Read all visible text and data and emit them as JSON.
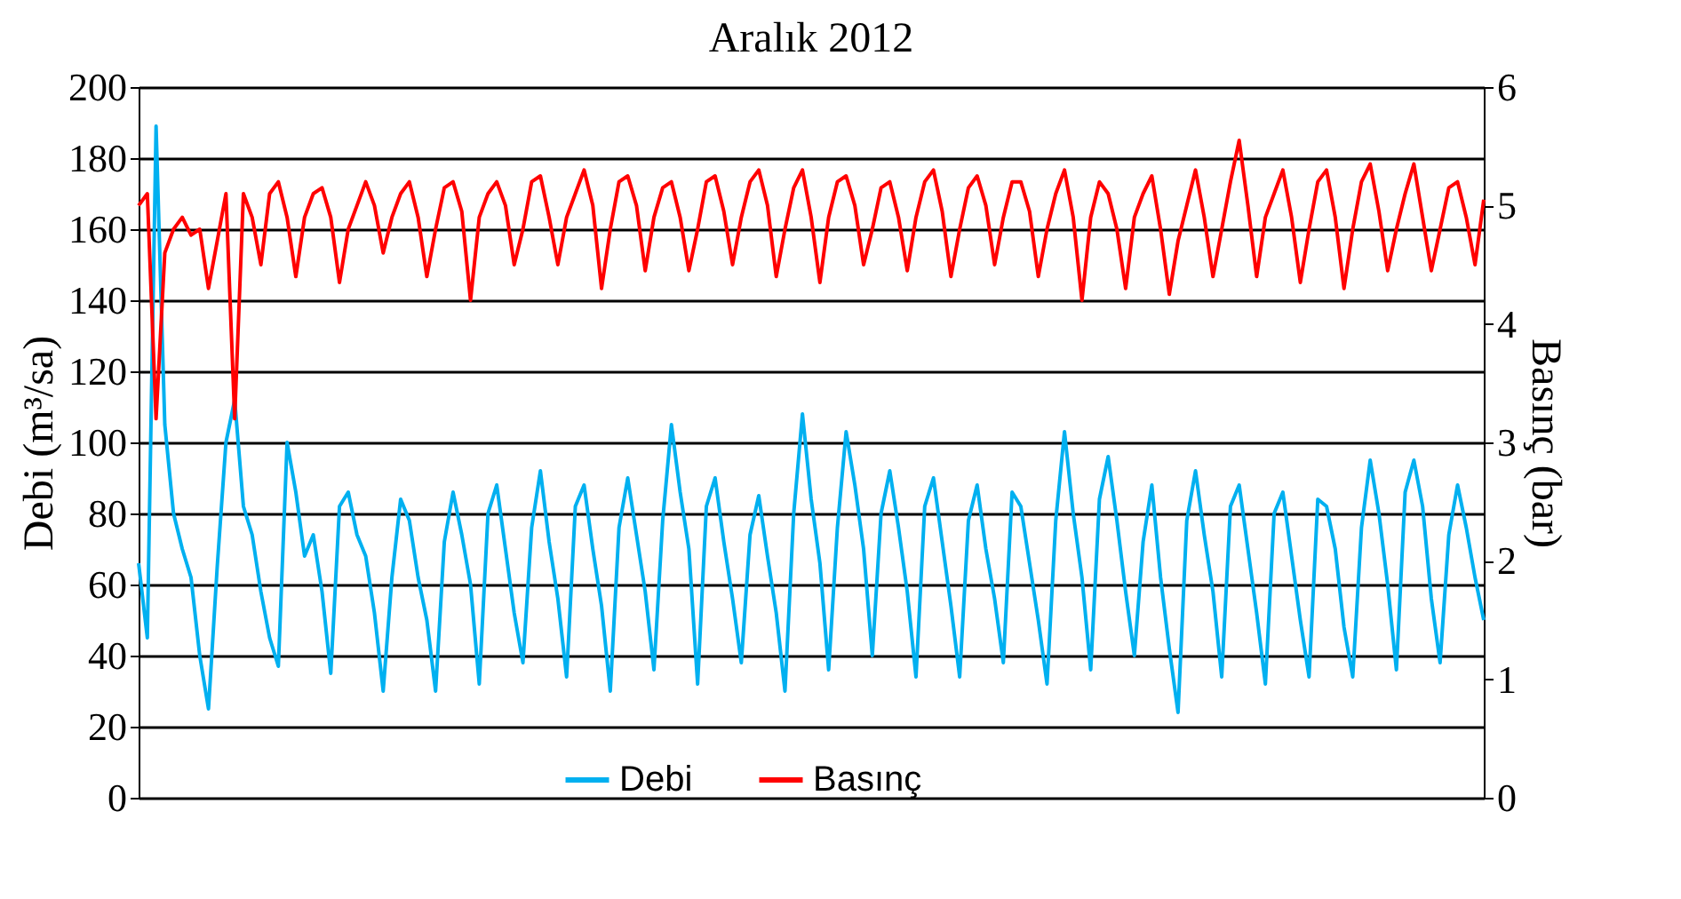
{
  "chart_data": {
    "type": "line",
    "title": "Aralık 2012",
    "ylabel": "Debi (m³/sa)",
    "y2label": "Basınç (bar)",
    "categories": [
      null,
      null,
      null,
      null,
      null,
      null,
      null,
      null,
      null,
      null,
      null,
      null,
      null,
      null,
      null,
      null,
      null,
      null,
      null,
      null,
      null,
      null,
      null,
      null,
      null,
      null,
      null,
      null,
      null,
      null,
      null,
      null,
      null,
      null,
      null,
      null,
      null,
      null,
      null,
      null,
      null,
      null,
      null,
      null,
      null,
      null,
      null,
      null,
      null,
      null,
      null,
      null,
      null,
      null,
      null,
      null,
      null,
      null,
      null,
      null,
      null,
      null,
      null,
      null,
      null,
      null,
      null,
      null,
      null,
      null,
      null,
      null,
      null,
      null,
      null,
      null,
      null,
      null,
      null,
      null,
      null,
      null,
      null,
      null,
      null,
      null,
      null,
      null,
      null,
      null,
      null,
      null,
      null,
      null,
      null,
      null,
      null,
      null,
      null,
      null,
      null,
      null,
      null,
      null,
      null,
      null,
      null,
      null,
      null,
      null,
      null,
      null,
      null,
      null,
      null,
      null,
      null,
      null,
      null,
      null,
      null,
      null,
      null,
      null,
      null,
      null,
      null,
      null,
      null,
      null,
      null,
      null,
      null,
      null,
      null,
      null,
      null,
      null,
      null,
      null,
      null,
      null,
      null,
      null,
      null,
      null,
      null,
      null,
      null,
      null,
      null,
      null,
      null,
      null,
      null
    ],
    "series": [
      {
        "name": "Debi",
        "color": "#00b0f0",
        "values": [
          66,
          45,
          189,
          105,
          80,
          70,
          62,
          40,
          25,
          65,
          100,
          112,
          82,
          74,
          58,
          45,
          37,
          100,
          86,
          68,
          74,
          58,
          35,
          82,
          86,
          74,
          68,
          52,
          30,
          62,
          84,
          78,
          62,
          50,
          30,
          72,
          86,
          74,
          60,
          32,
          80,
          88,
          70,
          52,
          38,
          76,
          92,
          72,
          56,
          34,
          82,
          88,
          70,
          54,
          30,
          76,
          90,
          74,
          58,
          36,
          78,
          105,
          86,
          70,
          32,
          82,
          90,
          72,
          56,
          38,
          74,
          85,
          68,
          52,
          30,
          80,
          108,
          84,
          66,
          36,
          76,
          103,
          88,
          70,
          40,
          80,
          92,
          76,
          58,
          34,
          82,
          90,
          72,
          54,
          34,
          78,
          88,
          70,
          56,
          38,
          86,
          82,
          66,
          50,
          32,
          78,
          103,
          80,
          62,
          36,
          84,
          96,
          78,
          58,
          40,
          72,
          88,
          62,
          42,
          24,
          78,
          92,
          74,
          58,
          34,
          82,
          88,
          70,
          52,
          32,
          80,
          86,
          68,
          50,
          34,
          84,
          82,
          70,
          48,
          34,
          76,
          95,
          80,
          60,
          36,
          86,
          95,
          82,
          56,
          38,
          74,
          88,
          76,
          62,
          50
        ]
      },
      {
        "name": "Basınç",
        "color": "#ff0000",
        "axis": "y2",
        "values": [
          5.0,
          5.1,
          3.2,
          4.6,
          4.8,
          4.9,
          4.75,
          4.8,
          4.3,
          4.7,
          5.1,
          3.2,
          5.1,
          4.9,
          4.5,
          5.1,
          5.2,
          4.9,
          4.4,
          4.9,
          5.1,
          5.15,
          4.9,
          4.35,
          4.8,
          5.0,
          5.2,
          5.0,
          4.6,
          4.9,
          5.1,
          5.2,
          4.9,
          4.4,
          4.8,
          5.15,
          5.2,
          4.95,
          4.2,
          4.9,
          5.1,
          5.2,
          5.0,
          4.5,
          4.8,
          5.2,
          5.25,
          4.9,
          4.5,
          4.9,
          5.1,
          5.3,
          5.0,
          4.3,
          4.8,
          5.2,
          5.25,
          5.0,
          4.45,
          4.9,
          5.15,
          5.2,
          4.9,
          4.45,
          4.8,
          5.2,
          5.25,
          4.95,
          4.5,
          4.9,
          5.2,
          5.3,
          5.0,
          4.4,
          4.8,
          5.15,
          5.3,
          4.9,
          4.35,
          4.9,
          5.2,
          5.25,
          5.0,
          4.5,
          4.8,
          5.15,
          5.2,
          4.9,
          4.45,
          4.9,
          5.2,
          5.3,
          4.95,
          4.4,
          4.8,
          5.15,
          5.25,
          5.0,
          4.5,
          4.9,
          5.2,
          5.2,
          4.95,
          4.4,
          4.8,
          5.1,
          5.3,
          4.9,
          4.2,
          4.9,
          5.2,
          5.1,
          4.8,
          4.3,
          4.9,
          5.1,
          5.25,
          4.8,
          4.25,
          4.7,
          5.0,
          5.3,
          4.9,
          4.4,
          4.8,
          5.2,
          5.55,
          5.0,
          4.4,
          4.9,
          5.1,
          5.3,
          4.9,
          4.35,
          4.8,
          5.2,
          5.3,
          4.9,
          4.3,
          4.8,
          5.2,
          5.35,
          4.95,
          4.45,
          4.8,
          5.1,
          5.35,
          4.9,
          4.45,
          4.8,
          5.15,
          5.2,
          4.9,
          4.5,
          5.05
        ]
      }
    ],
    "ylim": [
      0,
      200
    ],
    "yticks": [
      0,
      20,
      40,
      60,
      80,
      100,
      120,
      140,
      160,
      180,
      200
    ],
    "y2lim": [
      0,
      6
    ],
    "y2ticks": [
      0,
      1,
      2,
      3,
      4,
      5,
      6
    ],
    "grid": "y",
    "legend": "bottom",
    "marker": "none",
    "line_style": "solid"
  }
}
